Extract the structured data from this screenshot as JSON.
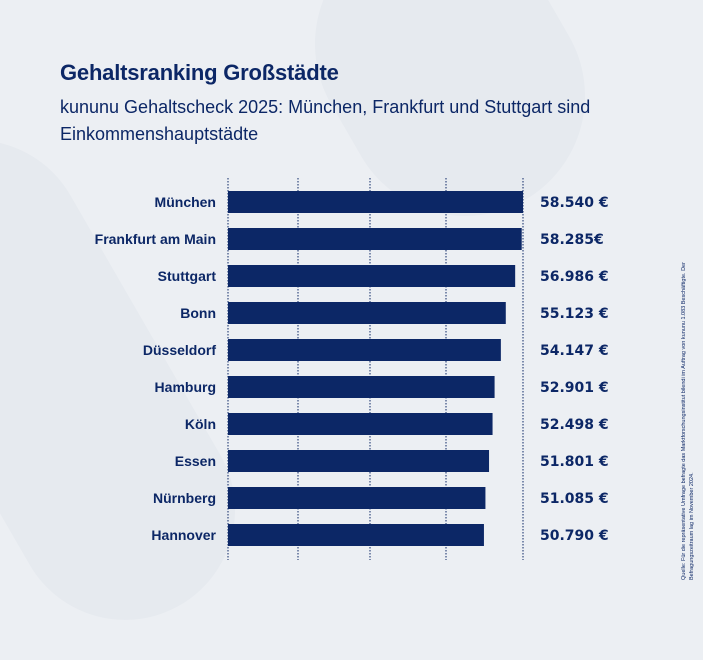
{
  "title": "Gehaltsranking Großstädte",
  "subtitle": "kununu Gehaltscheck 2025: München, Frankfurt und Stuttgart sind Einkommenshauptstädte",
  "source": "Quelle: Für die repräsentative Umfrage befragte das Marktforschungsinstitut bilendi im Auftrag von kununu 1.083 Beschäftigte. Der Befragungszeitraum lag im November 2024.",
  "colors": {
    "bar": "#0c2766",
    "text": "#0c2766",
    "background": "#eceff3",
    "grid": "#0c2766"
  },
  "chart_data": {
    "type": "bar",
    "orientation": "horizontal",
    "categories": [
      "München",
      "Frankfurt am Main",
      "Stuttgart",
      "Bonn",
      "Düsseldorf",
      "Hamburg",
      "Köln",
      "Essen",
      "Nürnberg",
      "Hannover"
    ],
    "values": [
      58540,
      58285,
      56986,
      55123,
      54147,
      52901,
      52498,
      51801,
      51085,
      50790
    ],
    "value_labels": [
      "58.540 €",
      "58.285€",
      "56.986 €",
      "55.123 €",
      "54.147 €",
      "52.901 €",
      "52.498 €",
      "51.801 €",
      "51.085 €",
      "50.790 €"
    ],
    "xlim": [
      0,
      58540
    ],
    "grid": true,
    "title": "Gehaltsranking Großstädte",
    "xlabel": "",
    "ylabel": ""
  }
}
